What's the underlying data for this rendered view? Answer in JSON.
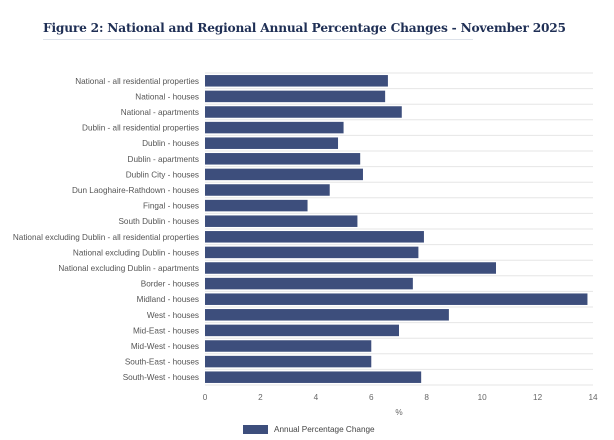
{
  "chart_data": {
    "type": "bar",
    "orientation": "horizontal",
    "title": "Figure 2: National and Regional Annual Percentage Changes - November 2025",
    "xlabel": "%",
    "ylabel": "",
    "xlim": [
      0,
      14
    ],
    "xticks": [
      0,
      2,
      4,
      6,
      8,
      10,
      12,
      14
    ],
    "grid": "horizontal row separators",
    "legend_position": "bottom",
    "bar_color": "#3d4e7c",
    "categories": [
      "National - all residential properties",
      "National - houses",
      "National - apartments",
      "Dublin - all residential properties",
      "Dublin - houses",
      "Dublin - apartments",
      "Dublin City - houses",
      "Dun Laoghaire-Rathdown - houses",
      "Fingal - houses",
      "South Dublin - houses",
      "National excluding Dublin - all residential properties",
      "National excluding Dublin - houses",
      "National excluding Dublin - apartments",
      "Border - houses",
      "Midland - houses",
      "West - houses",
      "Mid-East - houses",
      "Mid-West - houses",
      "South-East - houses",
      "South-West - houses"
    ],
    "series": [
      {
        "name": "Annual Percentage Change",
        "values": [
          6.6,
          6.5,
          7.1,
          5.0,
          4.8,
          5.6,
          5.7,
          4.5,
          3.7,
          5.5,
          7.9,
          7.7,
          10.5,
          7.5,
          13.8,
          8.8,
          7.0,
          6.0,
          6.0,
          7.8
        ]
      }
    ]
  }
}
